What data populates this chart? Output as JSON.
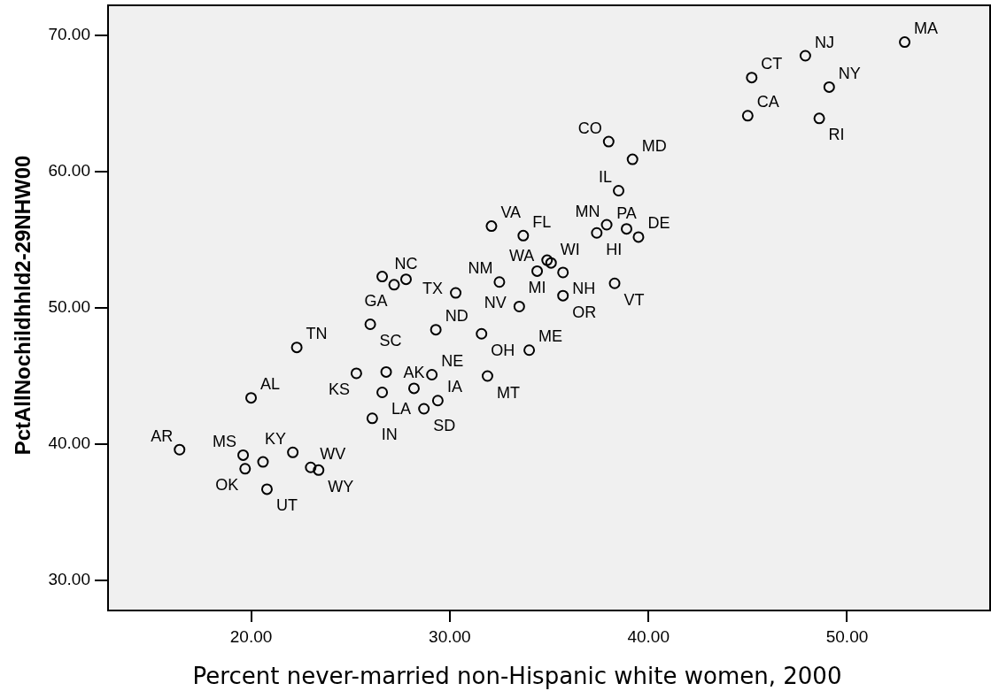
{
  "chart_data": {
    "type": "scatter",
    "xlabel": "Percent never-married non-Hispanic white women, 2000",
    "ylabel": "PctAllNochildhhld2-29NHW00",
    "xlim": [
      12.8,
      57.2
    ],
    "ylim": [
      27.8,
      72.2
    ],
    "xticks": [
      {
        "value": 20,
        "label": "20.00"
      },
      {
        "value": 30,
        "label": "30.00"
      },
      {
        "value": 40,
        "label": "40.00"
      },
      {
        "value": 50,
        "label": "50.00"
      }
    ],
    "yticks": [
      {
        "value": 30,
        "label": "30.00"
      },
      {
        "value": 40,
        "label": "40.00"
      },
      {
        "value": 50,
        "label": "50.00"
      },
      {
        "value": 60,
        "label": "60.00"
      },
      {
        "value": 70,
        "label": "70.00"
      }
    ],
    "marker": "circle",
    "series": [
      {
        "color": "#000000",
        "x": [
          52.9,
          47.9,
          45.2,
          49.1,
          45.0,
          48.6,
          38.0,
          39.2,
          38.5,
          32.1,
          33.7,
          37.4,
          37.9,
          38.9,
          39.5,
          34.9,
          35.1,
          34.4,
          35.7,
          32.5,
          30.3,
          33.5,
          35.7,
          38.3,
          26.6,
          27.2,
          27.8,
          26.0,
          29.3,
          31.6,
          34.0,
          25.3,
          26.8,
          29.1,
          31.9,
          26.6,
          28.2,
          29.4,
          28.7,
          26.1,
          22.3,
          20.0,
          16.4,
          19.6,
          20.6,
          19.7,
          22.1,
          20.8,
          23.0,
          23.4
        ],
        "values": [
          69.5,
          68.5,
          66.9,
          66.2,
          64.1,
          63.9,
          62.2,
          60.9,
          58.6,
          56.0,
          55.3,
          55.5,
          56.1,
          55.8,
          55.2,
          53.5,
          53.3,
          52.7,
          52.6,
          51.9,
          51.1,
          50.1,
          50.9,
          51.8,
          52.3,
          51.7,
          52.1,
          48.8,
          48.4,
          48.1,
          46.9,
          45.2,
          45.3,
          45.1,
          45.0,
          43.8,
          44.1,
          43.2,
          42.6,
          41.9,
          47.1,
          43.4,
          39.6,
          39.2,
          38.7,
          38.2,
          39.4,
          36.7,
          38.3,
          38.1
        ],
        "value_labels": [
          "MA",
          "NJ",
          "CT",
          "NY",
          "CA",
          "RI",
          "CO",
          "MD",
          "IL",
          "VA",
          "FL",
          "HI",
          "MN",
          "PA",
          "DE",
          "WA",
          "WI",
          "MI",
          "NH",
          "NM",
          "TX",
          "NV",
          "OR",
          "VT",
          null,
          "GA",
          "NC",
          "SC",
          "ND",
          "OH",
          "ME",
          "KS",
          null,
          "NE",
          "MT",
          "LA",
          "AK",
          "IA",
          "SD",
          "IN",
          "TN",
          "AL",
          "AR",
          "MS",
          null,
          "OK",
          "KY",
          "UT",
          "WV",
          "WY"
        ]
      }
    ]
  }
}
